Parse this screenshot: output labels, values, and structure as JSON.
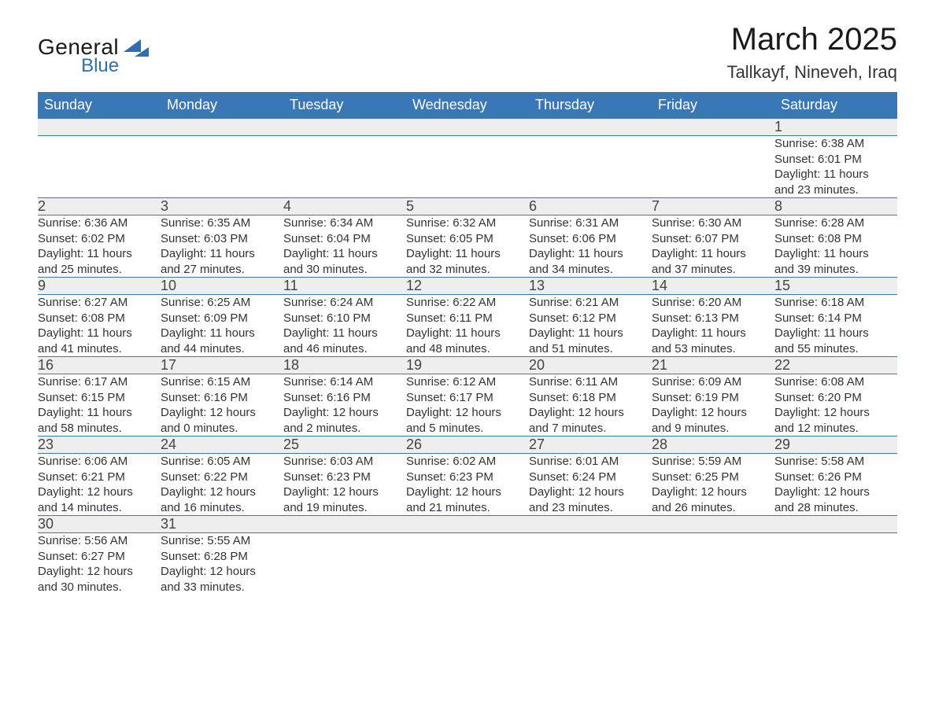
{
  "logo": {
    "word1": "General",
    "word2": "Blue",
    "mark_color": "#2f6eb5"
  },
  "title": "March 2025",
  "location": "Tallkayf, Nineveh, Iraq",
  "colors": {
    "header_bg": "#3a77b7",
    "header_fg": "#ffffff",
    "daynum_bg": "#eeeeee",
    "text": "#333333",
    "rule": "#3a77b7"
  },
  "day_headers": [
    "Sunday",
    "Monday",
    "Tuesday",
    "Wednesday",
    "Thursday",
    "Friday",
    "Saturday"
  ],
  "weeks": [
    [
      null,
      null,
      null,
      null,
      null,
      null,
      {
        "n": "1",
        "sunrise": "6:38 AM",
        "sunset": "6:01 PM",
        "day_h": "11",
        "day_m": "23"
      }
    ],
    [
      {
        "n": "2",
        "sunrise": "6:36 AM",
        "sunset": "6:02 PM",
        "day_h": "11",
        "day_m": "25"
      },
      {
        "n": "3",
        "sunrise": "6:35 AM",
        "sunset": "6:03 PM",
        "day_h": "11",
        "day_m": "27"
      },
      {
        "n": "4",
        "sunrise": "6:34 AM",
        "sunset": "6:04 PM",
        "day_h": "11",
        "day_m": "30"
      },
      {
        "n": "5",
        "sunrise": "6:32 AM",
        "sunset": "6:05 PM",
        "day_h": "11",
        "day_m": "32"
      },
      {
        "n": "6",
        "sunrise": "6:31 AM",
        "sunset": "6:06 PM",
        "day_h": "11",
        "day_m": "34"
      },
      {
        "n": "7",
        "sunrise": "6:30 AM",
        "sunset": "6:07 PM",
        "day_h": "11",
        "day_m": "37"
      },
      {
        "n": "8",
        "sunrise": "6:28 AM",
        "sunset": "6:08 PM",
        "day_h": "11",
        "day_m": "39"
      }
    ],
    [
      {
        "n": "9",
        "sunrise": "6:27 AM",
        "sunset": "6:08 PM",
        "day_h": "11",
        "day_m": "41"
      },
      {
        "n": "10",
        "sunrise": "6:25 AM",
        "sunset": "6:09 PM",
        "day_h": "11",
        "day_m": "44"
      },
      {
        "n": "11",
        "sunrise": "6:24 AM",
        "sunset": "6:10 PM",
        "day_h": "11",
        "day_m": "46"
      },
      {
        "n": "12",
        "sunrise": "6:22 AM",
        "sunset": "6:11 PM",
        "day_h": "11",
        "day_m": "48"
      },
      {
        "n": "13",
        "sunrise": "6:21 AM",
        "sunset": "6:12 PM",
        "day_h": "11",
        "day_m": "51"
      },
      {
        "n": "14",
        "sunrise": "6:20 AM",
        "sunset": "6:13 PM",
        "day_h": "11",
        "day_m": "53"
      },
      {
        "n": "15",
        "sunrise": "6:18 AM",
        "sunset": "6:14 PM",
        "day_h": "11",
        "day_m": "55"
      }
    ],
    [
      {
        "n": "16",
        "sunrise": "6:17 AM",
        "sunset": "6:15 PM",
        "day_h": "11",
        "day_m": "58"
      },
      {
        "n": "17",
        "sunrise": "6:15 AM",
        "sunset": "6:16 PM",
        "day_h": "12",
        "day_m": "0"
      },
      {
        "n": "18",
        "sunrise": "6:14 AM",
        "sunset": "6:16 PM",
        "day_h": "12",
        "day_m": "2"
      },
      {
        "n": "19",
        "sunrise": "6:12 AM",
        "sunset": "6:17 PM",
        "day_h": "12",
        "day_m": "5"
      },
      {
        "n": "20",
        "sunrise": "6:11 AM",
        "sunset": "6:18 PM",
        "day_h": "12",
        "day_m": "7"
      },
      {
        "n": "21",
        "sunrise": "6:09 AM",
        "sunset": "6:19 PM",
        "day_h": "12",
        "day_m": "9"
      },
      {
        "n": "22",
        "sunrise": "6:08 AM",
        "sunset": "6:20 PM",
        "day_h": "12",
        "day_m": "12"
      }
    ],
    [
      {
        "n": "23",
        "sunrise": "6:06 AM",
        "sunset": "6:21 PM",
        "day_h": "12",
        "day_m": "14"
      },
      {
        "n": "24",
        "sunrise": "6:05 AM",
        "sunset": "6:22 PM",
        "day_h": "12",
        "day_m": "16"
      },
      {
        "n": "25",
        "sunrise": "6:03 AM",
        "sunset": "6:23 PM",
        "day_h": "12",
        "day_m": "19"
      },
      {
        "n": "26",
        "sunrise": "6:02 AM",
        "sunset": "6:23 PM",
        "day_h": "12",
        "day_m": "21"
      },
      {
        "n": "27",
        "sunrise": "6:01 AM",
        "sunset": "6:24 PM",
        "day_h": "12",
        "day_m": "23"
      },
      {
        "n": "28",
        "sunrise": "5:59 AM",
        "sunset": "6:25 PM",
        "day_h": "12",
        "day_m": "26"
      },
      {
        "n": "29",
        "sunrise": "5:58 AM",
        "sunset": "6:26 PM",
        "day_h": "12",
        "day_m": "28"
      }
    ],
    [
      {
        "n": "30",
        "sunrise": "5:56 AM",
        "sunset": "6:27 PM",
        "day_h": "12",
        "day_m": "30"
      },
      {
        "n": "31",
        "sunrise": "5:55 AM",
        "sunset": "6:28 PM",
        "day_h": "12",
        "day_m": "33"
      },
      null,
      null,
      null,
      null,
      null
    ]
  ],
  "labels": {
    "sunrise": "Sunrise: ",
    "sunset": "Sunset: ",
    "daylight1": "Daylight: ",
    "daylight2": " hours and ",
    "daylight3": " minutes."
  }
}
